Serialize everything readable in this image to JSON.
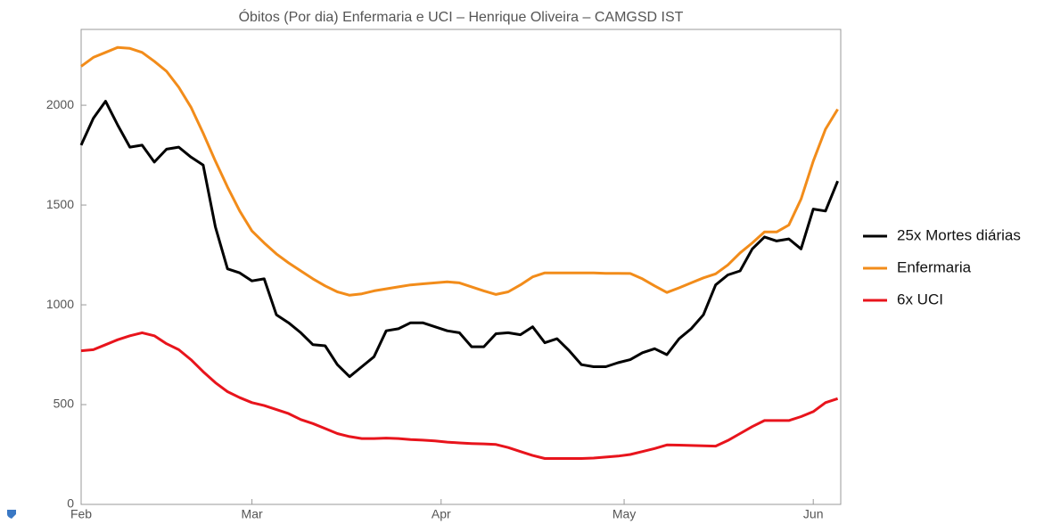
{
  "chart_data": {
    "type": "line",
    "title": "Óbitos (Por dia) Enfermaria e UCI – Henrique Oliveira – CAMGSD IST",
    "x": [
      0,
      2,
      4,
      6,
      8,
      10,
      12,
      14,
      16,
      18,
      20,
      22,
      24,
      26,
      28,
      30,
      32,
      34,
      36,
      38,
      40,
      42,
      44,
      46,
      48,
      50,
      52,
      54,
      56,
      58,
      60,
      62,
      64,
      66,
      68,
      70,
      72,
      74,
      76,
      78,
      80,
      82,
      84,
      86,
      88,
      90,
      92,
      94,
      96,
      98,
      100,
      102,
      104,
      106,
      108,
      110,
      112,
      114,
      116,
      118,
      120,
      122,
      124
    ],
    "series": [
      {
        "name": "25x Mortes diárias",
        "color": "#000000",
        "values": [
          1800,
          1935,
          2020,
          1900,
          1790,
          1800,
          1715,
          1780,
          1790,
          1740,
          1700,
          1390,
          1180,
          1160,
          1120,
          1130,
          950,
          910,
          860,
          800,
          795,
          700,
          640,
          690,
          740,
          870,
          880,
          910,
          910,
          890,
          870,
          860,
          790,
          790,
          855,
          860,
          850,
          890,
          810,
          830,
          770,
          700,
          690,
          690,
          710,
          725,
          760,
          780,
          750,
          830,
          880,
          950,
          1100,
          1150,
          1170,
          1280,
          1340,
          1320,
          1330,
          1280,
          1480,
          1470,
          1620
        ]
      },
      {
        "name": "Enfermaria",
        "color": "#f28c1a",
        "values": [
          2195,
          2240,
          2265,
          2290,
          2285,
          2265,
          2220,
          2170,
          2090,
          1990,
          1860,
          1720,
          1590,
          1470,
          1370,
          1310,
          1255,
          1210,
          1170,
          1130,
          1095,
          1065,
          1048,
          1055,
          1070,
          1080,
          1090,
          1100,
          1105,
          1110,
          1115,
          1110,
          1090,
          1070,
          1052,
          1065,
          1100,
          1140,
          1160,
          1160,
          1160,
          1160,
          1160,
          1158,
          1158,
          1157,
          1130,
          1095,
          1062,
          1085,
          1110,
          1135,
          1155,
          1200,
          1260,
          1310,
          1365,
          1365,
          1400,
          1530,
          1720,
          1880,
          1980
        ]
      },
      {
        "name": "6x UCI",
        "color": "#e8141c",
        "values": [
          770,
          775,
          800,
          825,
          845,
          860,
          845,
          805,
          775,
          725,
          665,
          610,
          565,
          535,
          510,
          495,
          475,
          455,
          425,
          405,
          380,
          355,
          340,
          330,
          330,
          332,
          330,
          325,
          322,
          318,
          312,
          308,
          305,
          303,
          300,
          285,
          265,
          245,
          230,
          230,
          230,
          230,
          232,
          237,
          242,
          250,
          265,
          280,
          298,
          297,
          295,
          294,
          292,
          320,
          355,
          390,
          420,
          420,
          420,
          440,
          465,
          510,
          530
        ]
      }
    ],
    "xlim": [
      0,
      124.5
    ],
    "xticks": [
      {
        "value": 0,
        "label": "Feb"
      },
      {
        "value": 28,
        "label": "Mar"
      },
      {
        "value": 59,
        "label": "Apr"
      },
      {
        "value": 89,
        "label": "May"
      },
      {
        "value": 120,
        "label": "Jun"
      }
    ],
    "ylim": [
      0,
      2380
    ],
    "yticks": [
      0,
      500,
      1000,
      1500,
      2000
    ],
    "grid": false,
    "legend": "right"
  }
}
